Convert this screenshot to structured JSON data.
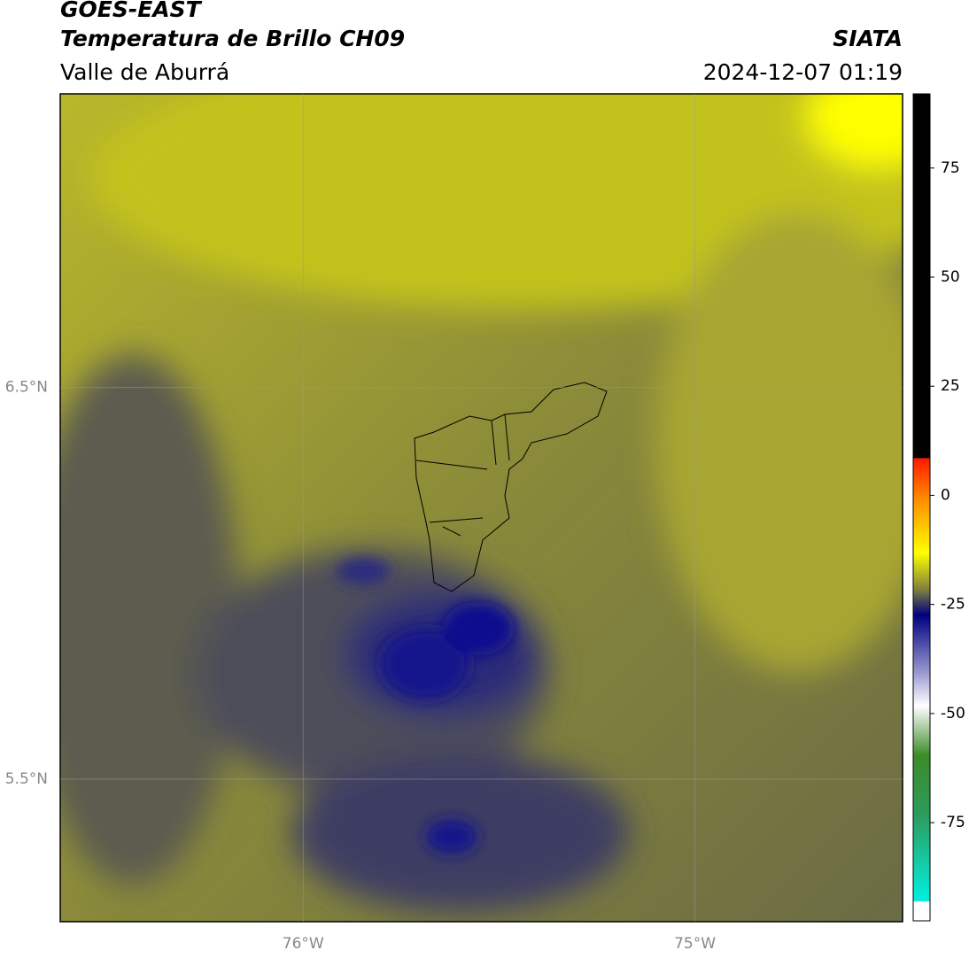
{
  "header": {
    "title": "GOES-EAST",
    "subtitle": "Temperatura de Brillo CH09",
    "region": "Valle de Aburrá",
    "source": "SIATA",
    "timestamp": "2024-12-07 01:19"
  },
  "map": {
    "xlim": [
      -76.62,
      -74.47
    ],
    "ylim": [
      5.136,
      7.25
    ],
    "xticks": [
      {
        "value": -76,
        "label": "76°W"
      },
      {
        "value": -75,
        "label": "75°W"
      }
    ],
    "yticks": [
      {
        "value": 6.5,
        "label": "6.5°N"
      },
      {
        "value": 5.5,
        "label": "5.5°N"
      }
    ],
    "grid": true
  },
  "colorbar": {
    "lim": [
      -97.5,
      92
    ],
    "ticks": [
      75,
      50,
      25,
      0,
      -25,
      -50,
      -75
    ]
  }
}
